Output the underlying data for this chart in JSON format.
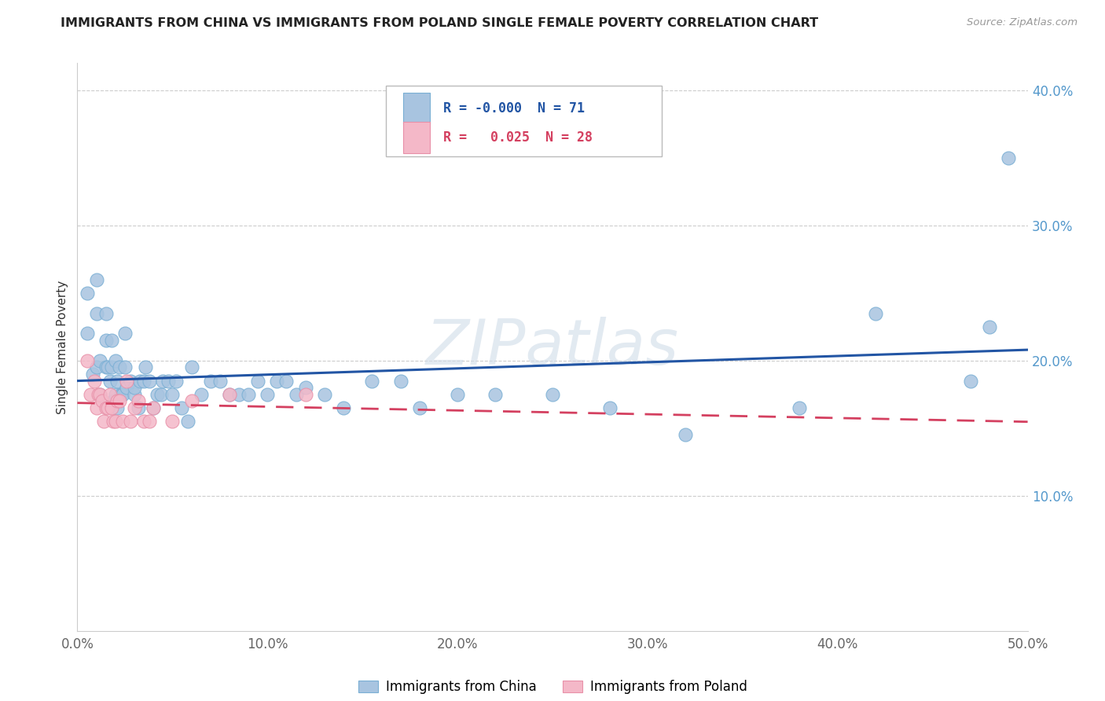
{
  "title": "IMMIGRANTS FROM CHINA VS IMMIGRANTS FROM POLAND SINGLE FEMALE POVERTY CORRELATION CHART",
  "source": "Source: ZipAtlas.com",
  "ylabel": "Single Female Poverty",
  "xlim": [
    0.0,
    0.5
  ],
  "ylim": [
    0.0,
    0.42
  ],
  "xtick_labels": [
    "0.0%",
    "10.0%",
    "20.0%",
    "30.0%",
    "40.0%",
    "50.0%"
  ],
  "xtick_vals": [
    0.0,
    0.1,
    0.2,
    0.3,
    0.4,
    0.5
  ],
  "ytick_labels": [
    "10.0%",
    "20.0%",
    "30.0%",
    "40.0%"
  ],
  "ytick_vals": [
    0.1,
    0.2,
    0.3,
    0.4
  ],
  "china_color": "#a8c4e0",
  "china_edge_color": "#7aafd4",
  "poland_color": "#f4b8c8",
  "poland_edge_color": "#e890a8",
  "china_R": "-0.000",
  "china_N": "71",
  "poland_R": "0.025",
  "poland_N": "28",
  "china_trend_color": "#2255a4",
  "poland_trend_color": "#d44060",
  "watermark": "ZIPatlas",
  "china_x": [
    0.005,
    0.005,
    0.008,
    0.01,
    0.01,
    0.01,
    0.012,
    0.012,
    0.015,
    0.015,
    0.015,
    0.016,
    0.017,
    0.018,
    0.018,
    0.019,
    0.02,
    0.02,
    0.021,
    0.021,
    0.022,
    0.023,
    0.024,
    0.025,
    0.025,
    0.026,
    0.028,
    0.03,
    0.03,
    0.032,
    0.033,
    0.035,
    0.036,
    0.038,
    0.04,
    0.042,
    0.044,
    0.045,
    0.048,
    0.05,
    0.052,
    0.055,
    0.058,
    0.06,
    0.065,
    0.07,
    0.075,
    0.08,
    0.085,
    0.09,
    0.095,
    0.1,
    0.105,
    0.11,
    0.115,
    0.12,
    0.13,
    0.14,
    0.155,
    0.17,
    0.18,
    0.2,
    0.22,
    0.25,
    0.28,
    0.32,
    0.38,
    0.42,
    0.47,
    0.48,
    0.49
  ],
  "china_y": [
    0.25,
    0.22,
    0.19,
    0.26,
    0.235,
    0.195,
    0.2,
    0.175,
    0.235,
    0.215,
    0.195,
    0.195,
    0.185,
    0.215,
    0.195,
    0.17,
    0.2,
    0.175,
    0.185,
    0.165,
    0.195,
    0.175,
    0.175,
    0.195,
    0.22,
    0.18,
    0.185,
    0.175,
    0.18,
    0.165,
    0.185,
    0.185,
    0.195,
    0.185,
    0.165,
    0.175,
    0.175,
    0.185,
    0.185,
    0.175,
    0.185,
    0.165,
    0.155,
    0.195,
    0.175,
    0.185,
    0.185,
    0.175,
    0.175,
    0.175,
    0.185,
    0.175,
    0.185,
    0.185,
    0.175,
    0.18,
    0.175,
    0.165,
    0.185,
    0.185,
    0.165,
    0.175,
    0.175,
    0.175,
    0.165,
    0.145,
    0.165,
    0.235,
    0.185,
    0.225,
    0.35
  ],
  "poland_x": [
    0.005,
    0.007,
    0.009,
    0.01,
    0.011,
    0.012,
    0.013,
    0.014,
    0.015,
    0.016,
    0.017,
    0.018,
    0.019,
    0.02,
    0.021,
    0.022,
    0.024,
    0.026,
    0.028,
    0.03,
    0.032,
    0.035,
    0.038,
    0.04,
    0.05,
    0.06,
    0.08,
    0.12
  ],
  "poland_y": [
    0.2,
    0.175,
    0.185,
    0.165,
    0.175,
    0.175,
    0.17,
    0.155,
    0.165,
    0.165,
    0.175,
    0.165,
    0.155,
    0.155,
    0.17,
    0.17,
    0.155,
    0.185,
    0.155,
    0.165,
    0.17,
    0.155,
    0.155,
    0.165,
    0.155,
    0.17,
    0.175,
    0.175
  ]
}
